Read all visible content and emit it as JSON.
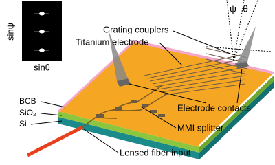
{
  "inset": {
    "y_label": "sinψ",
    "x_label": "sinθ"
  },
  "angles": {
    "psi": "ψ",
    "theta": "θ"
  },
  "layers": [
    "BCB",
    "SiO₂",
    "Si"
  ],
  "labels": {
    "grating_couplers": "Grating couplers",
    "titanium_electrode": "Titanium electrode",
    "electrode_contacts": "Electrode contacts",
    "mmi_splitter": "MMI splitter",
    "fiber_input": "Lensed fiber input"
  }
}
